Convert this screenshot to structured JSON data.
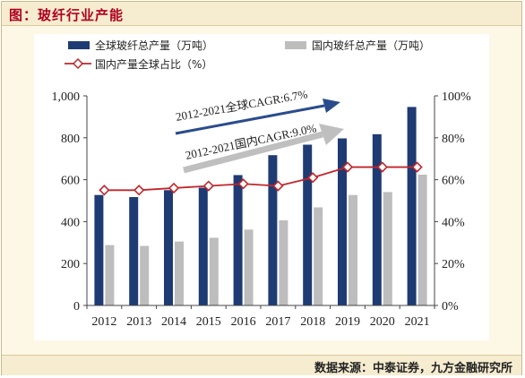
{
  "header": {
    "title": "图：玻纤行业产能"
  },
  "footer": {
    "source": "数据来源：中泰证券，九方金融研究所"
  },
  "colors": {
    "global_bar": "#1f3b73",
    "domestic_bar": "#bdbdbd",
    "share_line": "#c0262b",
    "arrow_global": "#2a4c8c",
    "arrow_domestic": "#bfbfbf"
  },
  "chart_data": {
    "type": "bar",
    "categories": [
      "2012",
      "2013",
      "2014",
      "2015",
      "2016",
      "2017",
      "2018",
      "2019",
      "2020",
      "2021"
    ],
    "series": [
      {
        "name": "全球玻纤总产量（万吨）",
        "type": "bar",
        "axis": "left",
        "values": [
          527,
          517,
          550,
          562,
          622,
          717,
          767,
          797,
          817,
          947
        ]
      },
      {
        "name": "国内玻纤总产量（万吨）",
        "type": "bar",
        "axis": "left",
        "values": [
          288,
          284,
          305,
          323,
          362,
          406,
          468,
          527,
          541,
          624
        ]
      },
      {
        "name": "国内产量全球占比（%）",
        "type": "line",
        "axis": "right",
        "values": [
          55,
          55,
          56,
          57,
          58,
          57,
          61,
          66,
          66,
          66
        ]
      }
    ],
    "y_left": {
      "min": 0,
      "max": 1000,
      "ticks": [
        "0",
        "200",
        "400",
        "600",
        "800",
        "1,000"
      ]
    },
    "y_right": {
      "min": 0,
      "max": 100,
      "ticks": [
        "0%",
        "20%",
        "40%",
        "60%",
        "80%",
        "100%"
      ]
    },
    "grid": false,
    "legend_position": "top",
    "annotations": [
      {
        "id": "global",
        "text": "2012-2021全球CAGR:6.7%"
      },
      {
        "id": "domestic",
        "text": "2012-2021国内CAGR:9.0%"
      }
    ]
  }
}
